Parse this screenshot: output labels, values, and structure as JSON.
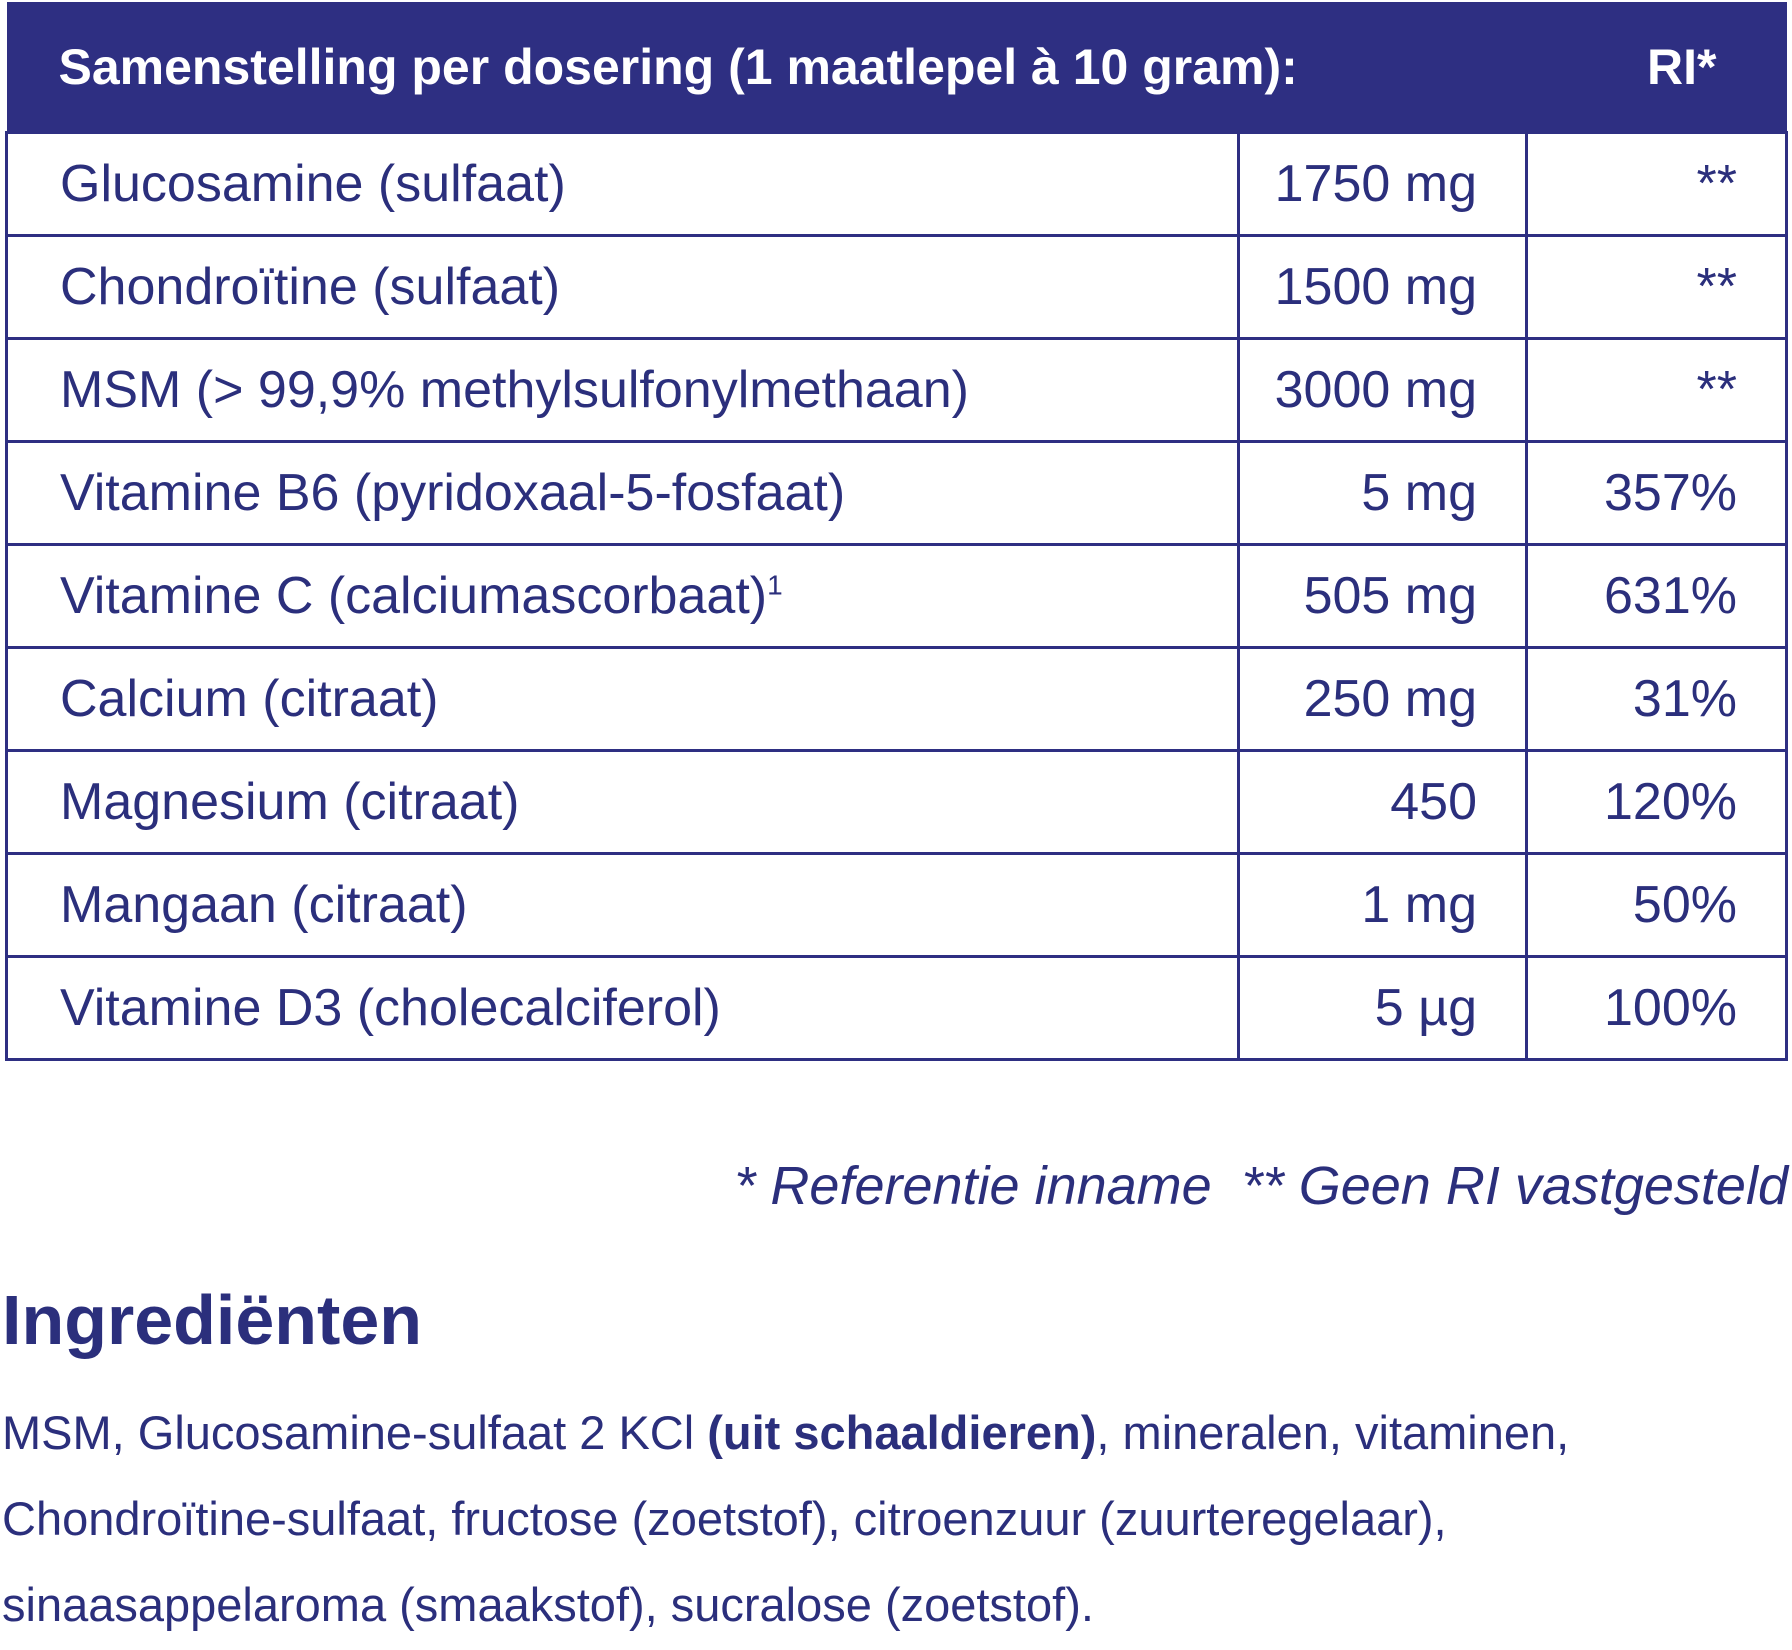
{
  "table": {
    "header": [
      "Samenstelling per dosering (1 maatlepel à 10 gram):",
      "RI*"
    ],
    "rows": [
      {
        "name": "Glucosamine (sulfaat)",
        "amount": "1750 mg",
        "ri": "**"
      },
      {
        "name": "Chondroïtine (sulfaat)",
        "amount": "1500 mg",
        "ri": "**"
      },
      {
        "name": "MSM (> 99,9% methylsulfonylmethaan)",
        "amount": "3000 mg",
        "ri": "**"
      },
      {
        "name": "Vitamine B6 (pyridoxaal-5-fosfaat)",
        "amount": "5 mg",
        "ri": "357%"
      },
      {
        "name": "Vitamine C (calciumascorbaat)",
        "sup": "1",
        "amount": "505 mg",
        "ri": "631%"
      },
      {
        "name": "Calcium (citraat)",
        "amount": "250 mg",
        "ri": "31%"
      },
      {
        "name": "Magnesium (citraat)",
        "amount": "450",
        "ri": "120%"
      },
      {
        "name": "Mangaan (citraat)",
        "amount": "1 mg",
        "ri": "50%"
      },
      {
        "name": "Vitamine D3 (cholecalciferol)",
        "amount": "5 µg",
        "ri": "100%"
      }
    ],
    "footnote": "* Referentie inname  ** Geen RI vastgesteld"
  },
  "ingredients": {
    "title": "Ingrediënten",
    "parts": [
      "MSM, Glucosamine-sulfaat 2 KCl ",
      "(uit schaaldieren)",
      ", mineralen, vitaminen, Chondroïtine-sulfaat, fructose (zoetstof), citroenzuur (zuurteregelaar), sinaasappelaroma (smaakstof), sucralose (zoetstof)."
    ]
  }
}
